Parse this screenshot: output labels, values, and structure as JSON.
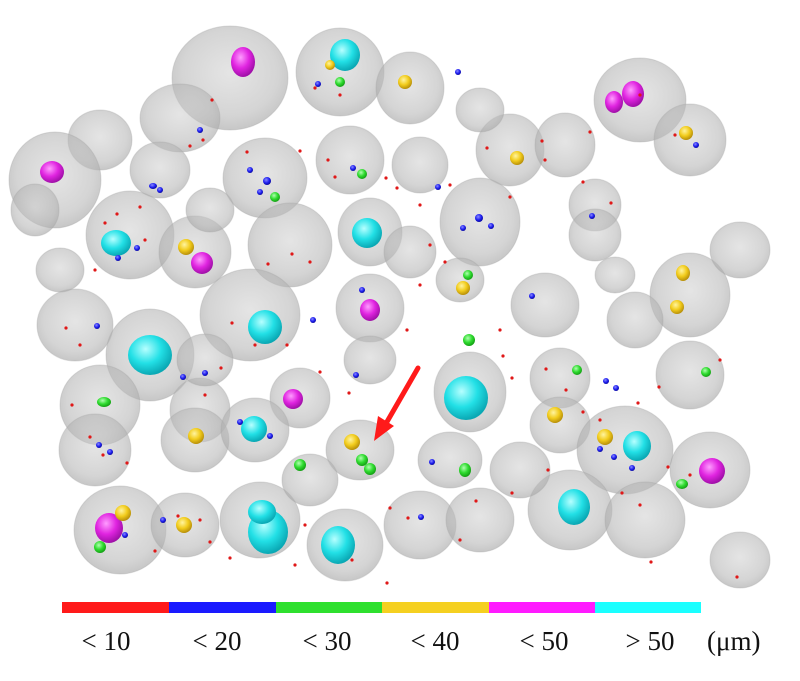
{
  "legend": {
    "bins": [
      {
        "label": "< 10",
        "color": "#ff1a1a"
      },
      {
        "label": "< 20",
        "color": "#1a1aff"
      },
      {
        "label": "< 30",
        "color": "#2ee02e"
      },
      {
        "label": "< 40",
        "color": "#f5d020"
      },
      {
        "label": "< 50",
        "color": "#ff1aff"
      },
      {
        "label": "> 50",
        "color": "#1affff"
      }
    ],
    "unit": "(μm)"
  },
  "colors": {
    "cell": "#b4b4b4",
    "arrow": "#ff1a1a"
  }
}
